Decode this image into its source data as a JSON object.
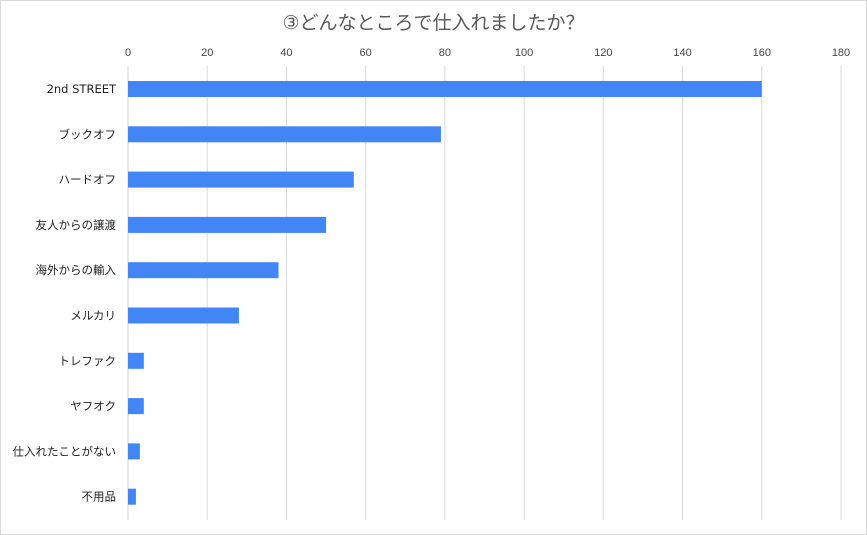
{
  "chart_data": {
    "type": "bar",
    "orientation": "horizontal",
    "title": "③どんなところで仕入れましたか？",
    "categories": [
      "2nd STREET",
      "ブックオフ",
      "ハードオフ",
      "友人からの譲渡",
      "海外からの輸入",
      "メルカリ",
      "トレファク",
      "ヤフオク",
      "仕入れたことがない",
      "不用品"
    ],
    "values": [
      160,
      79,
      57,
      50,
      38,
      28,
      4,
      4,
      3,
      2
    ],
    "xlim": [
      0,
      180
    ],
    "xticks": [
      "0",
      "20",
      "40",
      "60",
      "80",
      "100",
      "120",
      "140",
      "160",
      "180"
    ],
    "xaxis_position": "top",
    "grid": true,
    "legend": "none",
    "bar_color": "#4285f4",
    "grid_color": "#d9d9d9"
  }
}
